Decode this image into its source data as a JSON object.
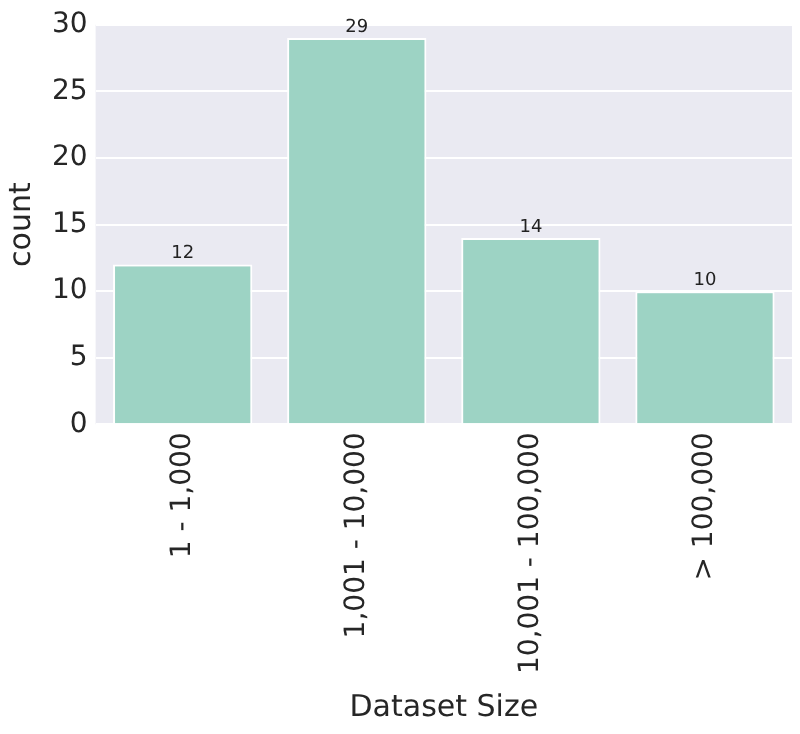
{
  "chart_data": {
    "type": "bar",
    "xlabel": "Dataset Size",
    "ylabel": "count",
    "categories": [
      "1 - 1,000",
      "1,001 - 10,000",
      "10,001 - 100,000",
      "> 100,000"
    ],
    "values": [
      12,
      29,
      14,
      10
    ],
    "color": "#9dd3c4",
    "ylim": [
      0,
      30
    ],
    "yticks": [
      0,
      5,
      10,
      15,
      20,
      25,
      30
    ],
    "grid": "y",
    "data_labels": true,
    "legend": false
  }
}
